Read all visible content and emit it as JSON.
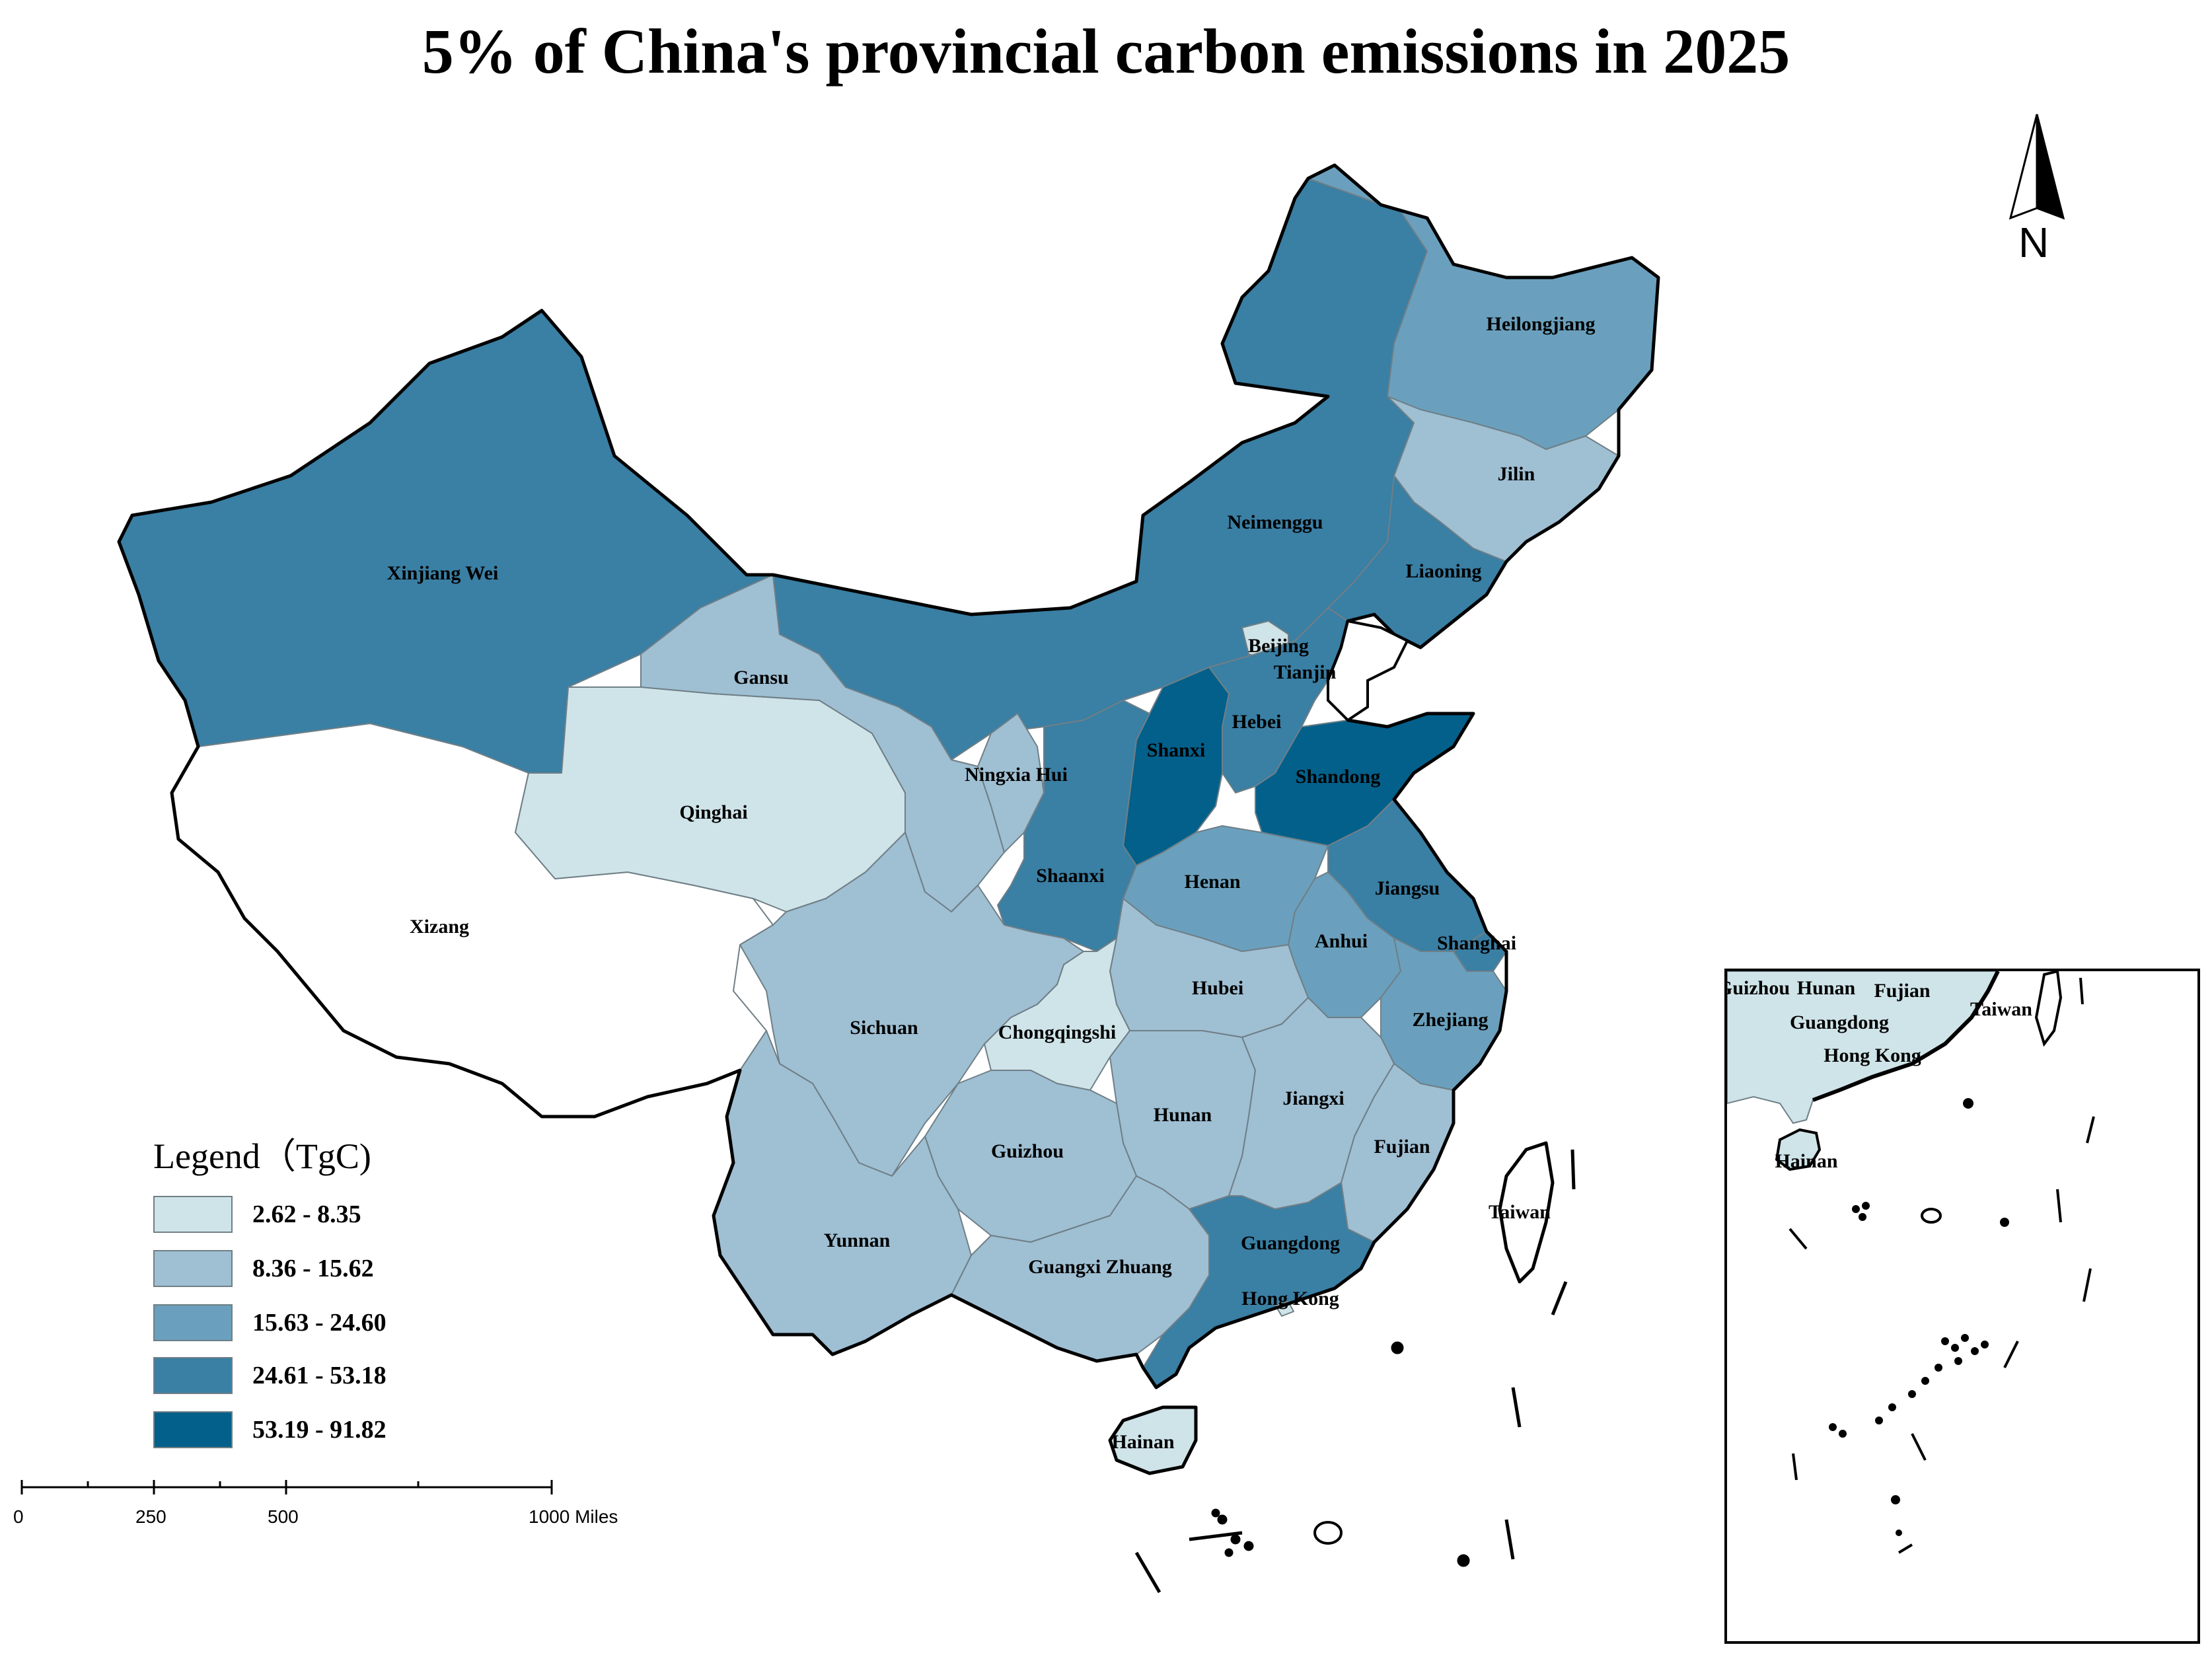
{
  "title": "5% of China's provincial carbon emissions in 2025",
  "legend": {
    "title": "Legend（TgC)",
    "classes": [
      {
        "range": "2.62 - 8.35",
        "color": "#cfe4e9"
      },
      {
        "range": "8.36 - 15.62",
        "color": "#9fbfd3"
      },
      {
        "range": "15.63 - 24.60",
        "color": "#6aa0bd"
      },
      {
        "range": "24.61 - 53.18",
        "color": "#3a7fa4"
      },
      {
        "range": "53.19 - 91.82",
        "color": "#03608a"
      }
    ],
    "no_data_color": "#ffffff"
  },
  "scale_bar": {
    "labels": [
      "0",
      "250",
      "500",
      "1000 Miles"
    ]
  },
  "north_arrow": {
    "label": "N",
    "icon": "north-arrow-icon"
  },
  "provinces": [
    {
      "name": "Xinjiang Wei",
      "class": 3
    },
    {
      "name": "Xizang",
      "class": -1
    },
    {
      "name": "Qinghai",
      "class": 0
    },
    {
      "name": "Gansu",
      "class": 1
    },
    {
      "name": "Neimenggu",
      "class": 3
    },
    {
      "name": "Heilongjiang",
      "class": 2
    },
    {
      "name": "Jilin",
      "class": 1
    },
    {
      "name": "Liaoning",
      "class": 3
    },
    {
      "name": "Beijing",
      "class": 0
    },
    {
      "name": "Tianjin",
      "class": 0
    },
    {
      "name": "Hebei",
      "class": 3
    },
    {
      "name": "Shanxi",
      "class": 4
    },
    {
      "name": "Shandong",
      "class": 4
    },
    {
      "name": "Ningxia Hui",
      "class": 1
    },
    {
      "name": "Shaanxi",
      "class": 3
    },
    {
      "name": "Henan",
      "class": 2
    },
    {
      "name": "Jiangsu",
      "class": 3
    },
    {
      "name": "Anhui",
      "class": 2
    },
    {
      "name": "Shanghai",
      "class": 3
    },
    {
      "name": "Hubei",
      "class": 1
    },
    {
      "name": "Chongqingshi",
      "class": 0
    },
    {
      "name": "Sichuan",
      "class": 1
    },
    {
      "name": "Zhejiang",
      "class": 2
    },
    {
      "name": "Hunan",
      "class": 1
    },
    {
      "name": "Jiangxi",
      "class": 1
    },
    {
      "name": "Guizhou",
      "class": 1
    },
    {
      "name": "Fujian",
      "class": 1
    },
    {
      "name": "Yunnan",
      "class": 1
    },
    {
      "name": "Guangxi Zhuang",
      "class": 1
    },
    {
      "name": "Guangdong",
      "class": 3
    },
    {
      "name": "Hong Kong",
      "class": 0
    },
    {
      "name": "Taiwan",
      "class": -1
    },
    {
      "name": "Hainan",
      "class": 0
    }
  ],
  "inset_labels": [
    "Guizhou",
    "Hunan",
    "Fujian",
    "Taiwan",
    "Guangdong",
    "Hong Kong",
    "Hainan"
  ]
}
